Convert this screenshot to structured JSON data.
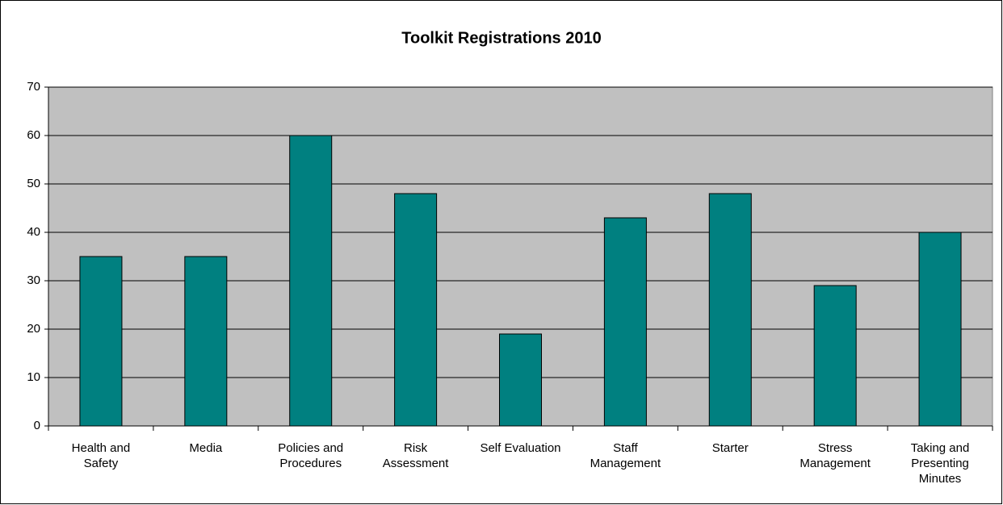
{
  "chart_data": {
    "type": "bar",
    "title": "Toolkit Registrations 2010",
    "categories": [
      "Health and Safety",
      "Media",
      "Policies and Procedures",
      "Risk Assessment",
      "Self Evaluation",
      "Staff Management",
      "Starter",
      "Stress Management",
      "Taking and Presenting Minutes"
    ],
    "values": [
      35,
      35,
      60,
      48,
      19,
      43,
      48,
      29,
      40
    ],
    "color": "#008080",
    "ylim": [
      0,
      70
    ],
    "yticks": [
      0,
      10,
      20,
      30,
      40,
      50,
      60,
      70
    ],
    "grid": true
  }
}
